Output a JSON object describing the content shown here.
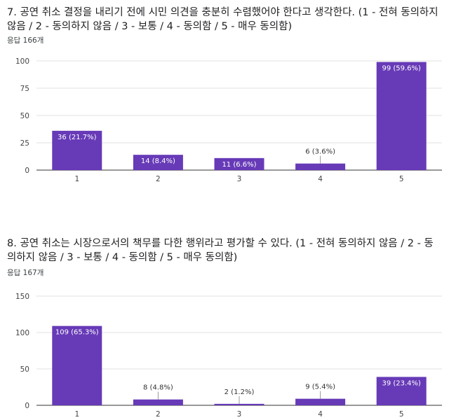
{
  "questions": [
    {
      "title": "7. 공연 취소 결정을 내리기 전에 시민 의견을 충분히 수렴했어야 한다고 생각한다. (1 - 전혀 동의하지 않음 / 2 - 동의하지 않음 / 3 - 보통 / 4 - 동의함 / 5 - 매우 동의함)",
      "response_count": "응답 166개"
    },
    {
      "title": "8. 공연 취소는 시장으로서의 책무를 다한 행위라고 평가할 수 있다. (1 - 전혀 동의하지 않음 / 2 - 동의하지 않음 / 3 - 보통 / 4 - 동의함 / 5 - 매우 동의함)",
      "response_count": "응답 167개"
    }
  ],
  "chart_data": [
    {
      "type": "bar",
      "categories": [
        "1",
        "2",
        "3",
        "4",
        "5"
      ],
      "values": [
        36,
        14,
        11,
        6,
        99
      ],
      "data_labels": [
        "36 (21.7%)",
        "14 (8.4%)",
        "11 (6.6%)",
        "6 (3.6%)",
        "99 (59.6%)"
      ],
      "y_ticks": [
        0,
        25,
        50,
        75,
        100
      ],
      "ylim": [
        0,
        100
      ],
      "bar_color": "#673ab7",
      "grid": true
    },
    {
      "type": "bar",
      "categories": [
        "1",
        "2",
        "3",
        "4",
        "5"
      ],
      "values": [
        109,
        8,
        2,
        9,
        39
      ],
      "data_labels": [
        "109 (65.3%)",
        "8 (4.8%)",
        "2 (1.2%)",
        "9 (5.4%)",
        "39 (23.4%)"
      ],
      "y_ticks": [
        0,
        50,
        100,
        150
      ],
      "ylim": [
        0,
        150
      ],
      "bar_color": "#673ab7",
      "grid": true
    }
  ]
}
